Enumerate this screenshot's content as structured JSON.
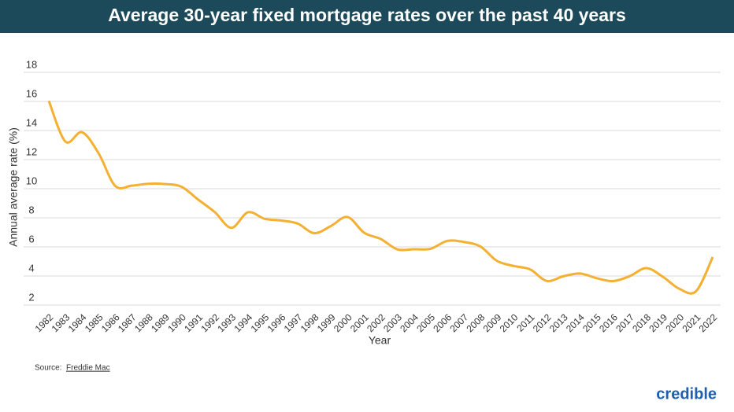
{
  "chart_data": {
    "type": "line",
    "title": "Average 30-year fixed mortgage rates over the past 40 years",
    "x_label": "Year",
    "y_label": "Annual average rate (%)",
    "categories": [
      "1982",
      "1983",
      "1984",
      "1985",
      "1986",
      "1987",
      "1988",
      "1989",
      "1990",
      "1991",
      "1992",
      "1993",
      "1994",
      "1995",
      "1996",
      "1997",
      "1998",
      "1999",
      "2000",
      "2001",
      "2002",
      "2003",
      "2004",
      "2005",
      "2006",
      "2007",
      "2008",
      "2009",
      "2010",
      "2011",
      "2012",
      "2013",
      "2014",
      "2015",
      "2016",
      "2017",
      "2018",
      "2019",
      "2020",
      "2021",
      "2022"
    ],
    "values": [
      16.04,
      13.24,
      13.88,
      12.43,
      10.19,
      10.21,
      10.34,
      10.32,
      10.13,
      9.25,
      8.39,
      7.31,
      8.38,
      7.93,
      7.81,
      7.6,
      6.94,
      7.44,
      8.05,
      6.97,
      6.54,
      5.83,
      5.84,
      5.87,
      6.41,
      6.34,
      6.03,
      5.04,
      4.69,
      4.45,
      3.66,
      3.98,
      4.17,
      3.85,
      3.65,
      3.99,
      4.54,
      3.94,
      3.11,
      2.96,
      5.3
    ],
    "color": "#f4b032",
    "ylim": [
      2,
      18
    ],
    "yticks": [
      2,
      4,
      6,
      8,
      10,
      12,
      14,
      16,
      18
    ],
    "grid": true,
    "source_prefix": "Source:",
    "source_name": "Freddie Mac",
    "brand": "credible"
  }
}
